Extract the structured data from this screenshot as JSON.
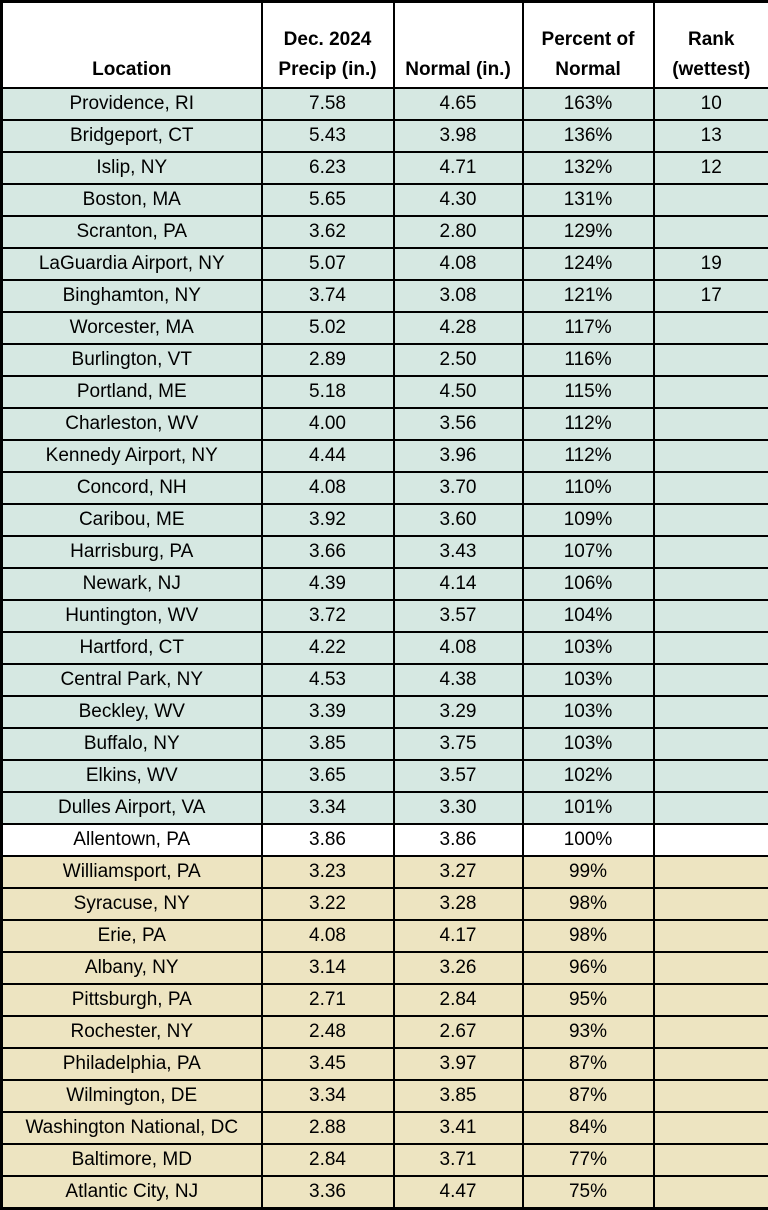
{
  "header": {
    "location": [
      "Location"
    ],
    "precip": [
      "Dec. 2024",
      "Precip (in.)"
    ],
    "normal": [
      "Normal (in.)"
    ],
    "percent": [
      "Percent of",
      "Normal"
    ],
    "rank": [
      "Rank",
      "(wettest)"
    ]
  },
  "colors": {
    "above_normal_fill": "#d6e8e2",
    "normal_fill": "#ffffff",
    "below_normal_fill": "#ede4c1",
    "border": "#000000",
    "text": "#000000"
  },
  "chart_data": {
    "type": "table",
    "columns": [
      "Location",
      "Dec. 2024 Precip (in.)",
      "Normal (in.)",
      "Percent of Normal",
      "Rank (wettest)"
    ],
    "rows": [
      {
        "location": "Providence, RI",
        "precip_in": "7.58",
        "normal_in": "4.65",
        "percent_of_normal": "163%",
        "rank": "10",
        "status": "above_normal"
      },
      {
        "location": "Bridgeport, CT",
        "precip_in": "5.43",
        "normal_in": "3.98",
        "percent_of_normal": "136%",
        "rank": "13",
        "status": "above_normal"
      },
      {
        "location": "Islip, NY",
        "precip_in": "6.23",
        "normal_in": "4.71",
        "percent_of_normal": "132%",
        "rank": "12",
        "status": "above_normal"
      },
      {
        "location": "Boston, MA",
        "precip_in": "5.65",
        "normal_in": "4.30",
        "percent_of_normal": "131%",
        "rank": "",
        "status": "above_normal"
      },
      {
        "location": "Scranton, PA",
        "precip_in": "3.62",
        "normal_in": "2.80",
        "percent_of_normal": "129%",
        "rank": "",
        "status": "above_normal"
      },
      {
        "location": "LaGuardia Airport, NY",
        "precip_in": "5.07",
        "normal_in": "4.08",
        "percent_of_normal": "124%",
        "rank": "19",
        "status": "above_normal"
      },
      {
        "location": "Binghamton, NY",
        "precip_in": "3.74",
        "normal_in": "3.08",
        "percent_of_normal": "121%",
        "rank": "17",
        "status": "above_normal"
      },
      {
        "location": "Worcester, MA",
        "precip_in": "5.02",
        "normal_in": "4.28",
        "percent_of_normal": "117%",
        "rank": "",
        "status": "above_normal"
      },
      {
        "location": "Burlington, VT",
        "precip_in": "2.89",
        "normal_in": "2.50",
        "percent_of_normal": "116%",
        "rank": "",
        "status": "above_normal"
      },
      {
        "location": "Portland, ME",
        "precip_in": "5.18",
        "normal_in": "4.50",
        "percent_of_normal": "115%",
        "rank": "",
        "status": "above_normal"
      },
      {
        "location": "Charleston, WV",
        "precip_in": "4.00",
        "normal_in": "3.56",
        "percent_of_normal": "112%",
        "rank": "",
        "status": "above_normal"
      },
      {
        "location": "Kennedy Airport, NY",
        "precip_in": "4.44",
        "normal_in": "3.96",
        "percent_of_normal": "112%",
        "rank": "",
        "status": "above_normal"
      },
      {
        "location": "Concord, NH",
        "precip_in": "4.08",
        "normal_in": "3.70",
        "percent_of_normal": "110%",
        "rank": "",
        "status": "above_normal"
      },
      {
        "location": "Caribou, ME",
        "precip_in": "3.92",
        "normal_in": "3.60",
        "percent_of_normal": "109%",
        "rank": "",
        "status": "above_normal"
      },
      {
        "location": "Harrisburg, PA",
        "precip_in": "3.66",
        "normal_in": "3.43",
        "percent_of_normal": "107%",
        "rank": "",
        "status": "above_normal"
      },
      {
        "location": "Newark, NJ",
        "precip_in": "4.39",
        "normal_in": "4.14",
        "percent_of_normal": "106%",
        "rank": "",
        "status": "above_normal"
      },
      {
        "location": "Huntington, WV",
        "precip_in": "3.72",
        "normal_in": "3.57",
        "percent_of_normal": "104%",
        "rank": "",
        "status": "above_normal"
      },
      {
        "location": "Hartford, CT",
        "precip_in": "4.22",
        "normal_in": "4.08",
        "percent_of_normal": "103%",
        "rank": "",
        "status": "above_normal"
      },
      {
        "location": "Central Park, NY",
        "precip_in": "4.53",
        "normal_in": "4.38",
        "percent_of_normal": "103%",
        "rank": "",
        "status": "above_normal"
      },
      {
        "location": "Beckley, WV",
        "precip_in": "3.39",
        "normal_in": "3.29",
        "percent_of_normal": "103%",
        "rank": "",
        "status": "above_normal"
      },
      {
        "location": "Buffalo, NY",
        "precip_in": "3.85",
        "normal_in": "3.75",
        "percent_of_normal": "103%",
        "rank": "",
        "status": "above_normal"
      },
      {
        "location": "Elkins, WV",
        "precip_in": "3.65",
        "normal_in": "3.57",
        "percent_of_normal": "102%",
        "rank": "",
        "status": "above_normal"
      },
      {
        "location": "Dulles Airport, VA",
        "precip_in": "3.34",
        "normal_in": "3.30",
        "percent_of_normal": "101%",
        "rank": "",
        "status": "above_normal"
      },
      {
        "location": "Allentown, PA",
        "precip_in": "3.86",
        "normal_in": "3.86",
        "percent_of_normal": "100%",
        "rank": "",
        "status": "normal"
      },
      {
        "location": "Williamsport, PA",
        "precip_in": "3.23",
        "normal_in": "3.27",
        "percent_of_normal": "99%",
        "rank": "",
        "status": "below_normal"
      },
      {
        "location": "Syracuse, NY",
        "precip_in": "3.22",
        "normal_in": "3.28",
        "percent_of_normal": "98%",
        "rank": "",
        "status": "below_normal"
      },
      {
        "location": "Erie, PA",
        "precip_in": "4.08",
        "normal_in": "4.17",
        "percent_of_normal": "98%",
        "rank": "",
        "status": "below_normal"
      },
      {
        "location": "Albany, NY",
        "precip_in": "3.14",
        "normal_in": "3.26",
        "percent_of_normal": "96%",
        "rank": "",
        "status": "below_normal"
      },
      {
        "location": "Pittsburgh, PA",
        "precip_in": "2.71",
        "normal_in": "2.84",
        "percent_of_normal": "95%",
        "rank": "",
        "status": "below_normal"
      },
      {
        "location": "Rochester, NY",
        "precip_in": "2.48",
        "normal_in": "2.67",
        "percent_of_normal": "93%",
        "rank": "",
        "status": "below_normal"
      },
      {
        "location": "Philadelphia, PA",
        "precip_in": "3.45",
        "normal_in": "3.97",
        "percent_of_normal": "87%",
        "rank": "",
        "status": "below_normal"
      },
      {
        "location": "Wilmington, DE",
        "precip_in": "3.34",
        "normal_in": "3.85",
        "percent_of_normal": "87%",
        "rank": "",
        "status": "below_normal"
      },
      {
        "location": "Washington National, DC",
        "precip_in": "2.88",
        "normal_in": "3.41",
        "percent_of_normal": "84%",
        "rank": "",
        "status": "below_normal"
      },
      {
        "location": "Baltimore, MD",
        "precip_in": "2.84",
        "normal_in": "3.71",
        "percent_of_normal": "77%",
        "rank": "",
        "status": "below_normal"
      },
      {
        "location": "Atlantic City, NJ",
        "precip_in": "3.36",
        "normal_in": "4.47",
        "percent_of_normal": "75%",
        "rank": "",
        "status": "below_normal"
      }
    ]
  }
}
